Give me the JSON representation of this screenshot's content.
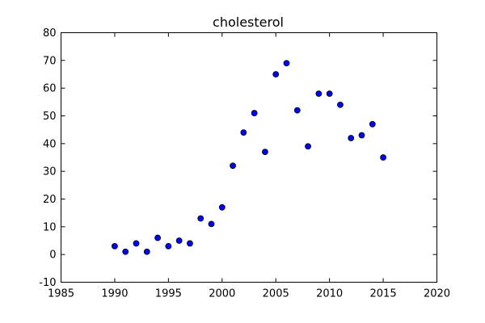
{
  "chart_data": {
    "type": "scatter",
    "title": "cholesterol",
    "xlabel": "",
    "ylabel": "",
    "xlim": [
      1985,
      2020
    ],
    "ylim": [
      -10,
      80
    ],
    "xticks": [
      1985,
      1990,
      1995,
      2000,
      2005,
      2010,
      2015,
      2020
    ],
    "yticks": [
      -10,
      0,
      10,
      20,
      30,
      40,
      50,
      60,
      70,
      80
    ],
    "grid": false,
    "marker_color": "#0000ff",
    "series": [
      {
        "x": [
          1990,
          1991,
          1992,
          1993,
          1994,
          1995,
          1996,
          1997,
          1998,
          1999,
          2000,
          2001,
          2002,
          2003,
          2004,
          2005,
          2006,
          2007,
          2008,
          2009,
          2010,
          2011,
          2012,
          2013,
          2014,
          2015
        ],
        "y": [
          3,
          1,
          4,
          1,
          6,
          3,
          5,
          4,
          13,
          11,
          17,
          32,
          44,
          51,
          37,
          65,
          69,
          52,
          39,
          58,
          58,
          54,
          42,
          43,
          47,
          35
        ]
      }
    ]
  }
}
